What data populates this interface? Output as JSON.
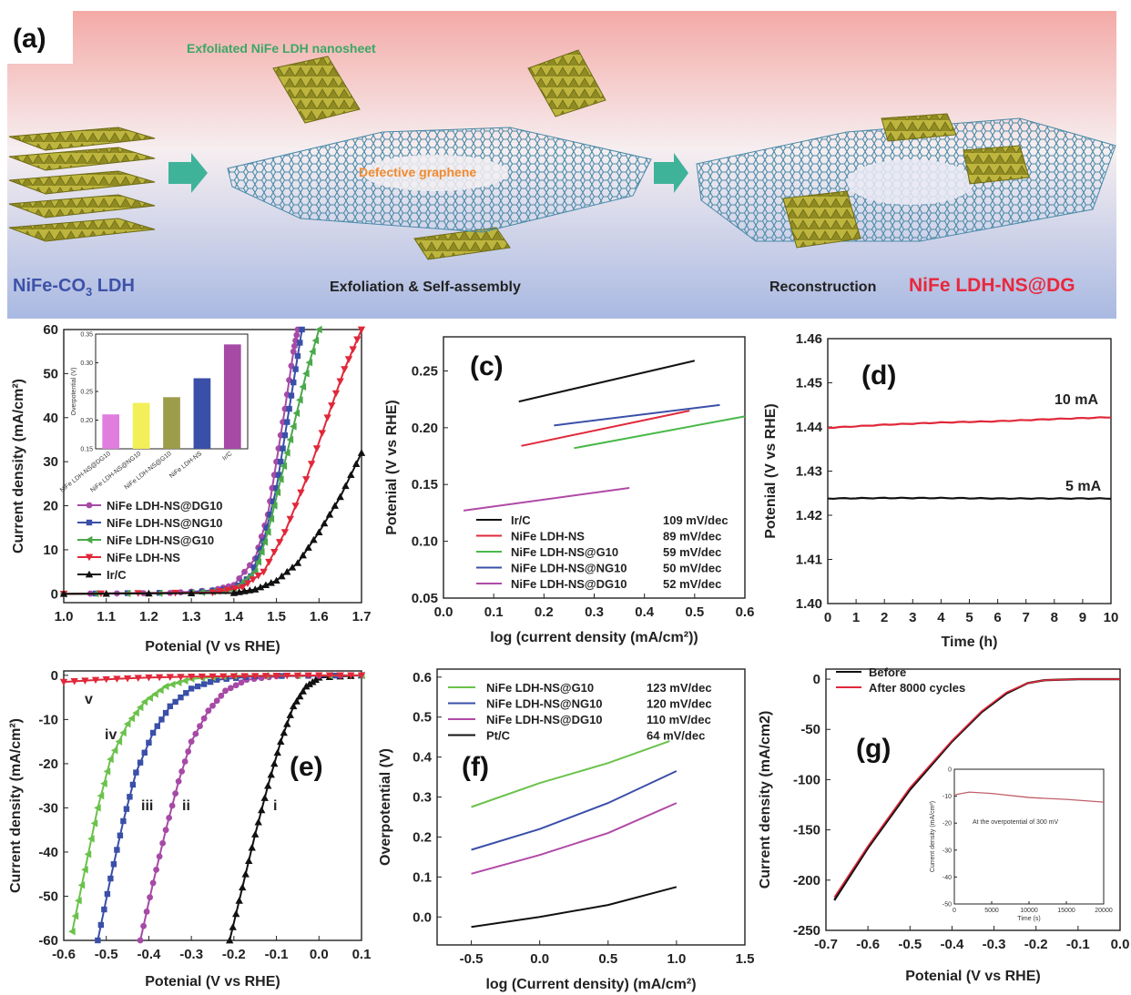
{
  "panel_a": {
    "label": "(a)",
    "title_nanosheet": "Exfoliated NiFe LDH nanosheet",
    "defective_graphene": "Defective graphene",
    "start_material": "NiFe-CO3 LDH",
    "step1": "Exfoliation & Self-assembly",
    "step2": "Reconstruction",
    "product": "NiFe LDH-NS@DG",
    "colors": {
      "bg_top": "#f4a9a6",
      "bg_bottom": "#a9b8e0",
      "arrow": "#3fb39a",
      "blue_text": "#3d52a8",
      "red_text": "#e8283d",
      "green_text": "#3aa866",
      "orange_text": "#f08a2e",
      "ldh": "#b8b23c",
      "graphene": "#4a8aa8"
    }
  },
  "chart_data": [
    {
      "id": "b",
      "type": "line",
      "label": "(b)",
      "xlabel": "Potenial (V vs RHE)",
      "ylabel": "Current density (mA/cm²)",
      "xlim": [
        1.0,
        1.7
      ],
      "ylim": [
        -2,
        60
      ],
      "xticks": [
        "1.0",
        "1.1",
        "1.2",
        "1.3",
        "1.4",
        "1.5",
        "1.6",
        "1.7"
      ],
      "yticks": [
        "0",
        "10",
        "20",
        "30",
        "40",
        "50",
        "60"
      ],
      "legend_position": "lower-left",
      "series": [
        {
          "name": "NiFe LDH-NS@DG10",
          "color": "#a64aa6",
          "marker": "circle",
          "x": [
            1.0,
            1.25,
            1.35,
            1.4,
            1.45,
            1.48,
            1.5,
            1.52,
            1.54,
            1.55
          ],
          "y": [
            0,
            0.2,
            0.8,
            2,
            8,
            18,
            30,
            42,
            55,
            60
          ]
        },
        {
          "name": "NiFe LDH-NS@NG10",
          "color": "#3a4fa8",
          "marker": "square",
          "x": [
            1.0,
            1.3,
            1.4,
            1.44,
            1.47,
            1.5,
            1.52,
            1.54,
            1.56
          ],
          "y": [
            0,
            0.3,
            1.2,
            4,
            12,
            24,
            36,
            48,
            60
          ]
        },
        {
          "name": "NiFe LDH-NS@G10",
          "color": "#4aa84a",
          "marker": "tri-left",
          "x": [
            1.0,
            1.3,
            1.4,
            1.45,
            1.48,
            1.51,
            1.54,
            1.57,
            1.6
          ],
          "y": [
            0,
            0.2,
            0.8,
            5,
            14,
            26,
            38,
            50,
            60
          ]
        },
        {
          "name": "NiFe LDH-NS",
          "color": "#e0283a",
          "marker": "tri-down",
          "x": [
            1.0,
            1.35,
            1.42,
            1.47,
            1.52,
            1.57,
            1.62,
            1.66,
            1.7
          ],
          "y": [
            0,
            0.3,
            1.5,
            5,
            14,
            26,
            40,
            51,
            60
          ]
        },
        {
          "name": "Ir/C",
          "color": "#111111",
          "marker": "tri-up",
          "x": [
            1.0,
            1.4,
            1.45,
            1.5,
            1.55,
            1.6,
            1.65,
            1.7
          ],
          "y": [
            0,
            0.2,
            1,
            3,
            7,
            14,
            22,
            32
          ]
        }
      ],
      "inset": {
        "type": "bar",
        "ylabel": "Overpotential (V)",
        "ylim": [
          0.15,
          0.35
        ],
        "yticks": [
          "0.15",
          "0.20",
          "0.25",
          "0.30",
          "0.35"
        ],
        "categories": [
          "NiFe LDH-NS@DG10",
          "NiFe LDH-NS@NG10",
          "NiFe LDH-NS@G10",
          "NiFe LDH-NS",
          "Ir/C"
        ],
        "values": [
          0.21,
          0.23,
          0.24,
          0.273,
          0.332
        ],
        "colors": [
          "#e27de0",
          "#f2ef58",
          "#9c9c4a",
          "#3a4fa8",
          "#a64aa6"
        ]
      }
    },
    {
      "id": "c",
      "type": "line",
      "label": "(c)",
      "xlabel": "log (current density (mA/cm²))",
      "ylabel": "Potenial (V vs RHE)",
      "xlim": [
        0.0,
        0.6
      ],
      "ylim": [
        0.05,
        0.28
      ],
      "xticks": [
        "0.0",
        "0.1",
        "0.2",
        "0.3",
        "0.4",
        "0.5",
        "0.6"
      ],
      "yticks": [
        "0.05",
        "0.10",
        "0.15",
        "0.20",
        "0.25"
      ],
      "legend_position": "lower-right",
      "series": [
        {
          "name": "Ir/C",
          "slope": "109 mV/dec",
          "color": "#111111",
          "x": [
            0.15,
            0.5
          ],
          "y": [
            0.223,
            0.259
          ]
        },
        {
          "name": "NiFe LDH-NS",
          "slope": "89  mV/dec",
          "color": "#e0283a",
          "x": [
            0.155,
            0.49
          ],
          "y": [
            0.184,
            0.215
          ]
        },
        {
          "name": "NiFe LDH-NS@G10",
          "slope": "59  mV/dec",
          "color": "#4ab84a",
          "x": [
            0.26,
            0.6
          ],
          "y": [
            0.182,
            0.21
          ]
        },
        {
          "name": "NiFe LDH-NS@NG10",
          "slope": "50  mV/dec",
          "color": "#3a4fa8",
          "x": [
            0.22,
            0.55
          ],
          "y": [
            0.202,
            0.22
          ]
        },
        {
          "name": "NiFe LDH-NS@DG10",
          "slope": "52  mV/dec",
          "color": "#b04aa6",
          "x": [
            0.04,
            0.37
          ],
          "y": [
            0.127,
            0.147
          ]
        }
      ]
    },
    {
      "id": "d",
      "type": "line",
      "label": "(d)",
      "xlabel": "Time (h)",
      "ylabel": "Potenial (V vs RHE)",
      "xlim": [
        0,
        10
      ],
      "ylim": [
        1.4,
        1.46
      ],
      "xticks": [
        "0",
        "1",
        "2",
        "3",
        "4",
        "5",
        "6",
        "7",
        "8",
        "9",
        "10"
      ],
      "yticks": [
        "1.40",
        "1.41",
        "1.42",
        "1.43",
        "1.44",
        "1.45",
        "1.46"
      ],
      "series": [
        {
          "name": "10 mA",
          "color": "#e0283a",
          "x": [
            0,
            2,
            4,
            6,
            8,
            10
          ],
          "y": [
            1.4398,
            1.4405,
            1.441,
            1.4413,
            1.4418,
            1.4422
          ]
        },
        {
          "name": "5 mA",
          "color": "#111111",
          "x": [
            0,
            2,
            4,
            6,
            8,
            10
          ],
          "y": [
            1.4238,
            1.4239,
            1.4239,
            1.4238,
            1.4238,
            1.4238
          ]
        }
      ]
    },
    {
      "id": "e",
      "type": "line",
      "label": "(e)",
      "xlabel": "Potenial (V vs RHE)",
      "ylabel": "Current density (mA/cm²)",
      "xlim": [
        -0.6,
        0.1
      ],
      "ylim": [
        -60,
        1
      ],
      "xticks": [
        "-0.6",
        "-0.5",
        "-0.4",
        "-0.3",
        "-0.2",
        "-0.1",
        "0.0",
        "0.1"
      ],
      "yticks": [
        "0",
        "-10",
        "-20",
        "-30",
        "-40",
        "-50",
        "-60"
      ],
      "series": [
        {
          "name": "i",
          "color": "#111111",
          "marker": "tri-up",
          "x": [
            -0.21,
            -0.18,
            -0.15,
            -0.12,
            -0.09,
            -0.06,
            -0.03,
            0.0,
            0.1
          ],
          "y": [
            -60,
            -48,
            -36,
            -25,
            -15,
            -7,
            -2.5,
            -0.5,
            0
          ]
        },
        {
          "name": "ii",
          "color": "#a64aa6",
          "marker": "circle",
          "x": [
            -0.42,
            -0.39,
            -0.36,
            -0.33,
            -0.3,
            -0.26,
            -0.22,
            -0.17,
            -0.1,
            0.1
          ],
          "y": [
            -60,
            -47,
            -35,
            -24,
            -15,
            -8,
            -3.5,
            -1,
            -0.2,
            0
          ]
        },
        {
          "name": "iii",
          "color": "#3a4fa8",
          "marker": "square",
          "x": [
            -0.52,
            -0.49,
            -0.46,
            -0.43,
            -0.39,
            -0.35,
            -0.3,
            -0.24,
            -0.15,
            0.1
          ],
          "y": [
            -60,
            -46,
            -33,
            -22,
            -13,
            -7,
            -3,
            -1,
            -0.2,
            0
          ]
        },
        {
          "name": "iv",
          "color": "#6ac24a",
          "marker": "tri-left",
          "x": [
            -0.58,
            -0.55,
            -0.52,
            -0.49,
            -0.45,
            -0.41,
            -0.36,
            -0.3,
            -0.2,
            0.1
          ],
          "y": [
            -58,
            -44,
            -30,
            -19,
            -11,
            -6,
            -2.5,
            -0.8,
            -0.1,
            0
          ]
        },
        {
          "name": "v",
          "color": "#e0283a",
          "marker": "tri-down",
          "x": [
            -0.6,
            -0.5,
            -0.4,
            -0.3,
            -0.2,
            -0.1,
            0.0,
            0.1
          ],
          "y": [
            -1.5,
            -0.9,
            -0.5,
            -0.3,
            -0.2,
            -0.1,
            0,
            0
          ]
        }
      ]
    },
    {
      "id": "f",
      "type": "line",
      "label": "(f)",
      "xlabel": "log (Current density) (mA/cm²)",
      "ylabel": "Overpotential (V)",
      "xlim": [
        -0.75,
        1.5
      ],
      "ylim": [
        -0.07,
        0.62
      ],
      "xticks": [
        "-0.5",
        "0.0",
        "0.5",
        "1.0",
        "1.5"
      ],
      "yticks": [
        "0.0",
        "0.1",
        "0.2",
        "0.3",
        "0.4",
        "0.5",
        "0.6"
      ],
      "legend_position": "top-left",
      "series": [
        {
          "name": "NiFe LDH-NS@G10",
          "slope": "123 mV/dec",
          "color": "#6ac24a",
          "x": [
            -0.5,
            0,
            0.5,
            0.95
          ],
          "y": [
            0.275,
            0.335,
            0.385,
            0.44
          ]
        },
        {
          "name": "NiFe LDH-NS@NG10",
          "slope": "120 mV/dec",
          "color": "#3a4fa8",
          "x": [
            -0.5,
            0,
            0.5,
            1.0
          ],
          "y": [
            0.168,
            0.22,
            0.285,
            0.365
          ]
        },
        {
          "name": "NiFe LDH-NS@DG10",
          "slope": "110 mV/dec",
          "color": "#b04aa6",
          "x": [
            -0.5,
            0,
            0.5,
            1.0
          ],
          "y": [
            0.108,
            0.155,
            0.21,
            0.285
          ]
        },
        {
          "name": "Pt/C",
          "slope": "64  mV/dec",
          "color": "#111111",
          "x": [
            -0.5,
            0,
            0.5,
            1.0
          ],
          "y": [
            -0.025,
            0.0,
            0.03,
            0.075
          ]
        }
      ]
    },
    {
      "id": "g",
      "type": "line",
      "label": "(g)",
      "xlabel": "Potenial (V vs RHE)",
      "ylabel": "Current density (mA/cm2)",
      "xlim": [
        -0.7,
        0.0
      ],
      "ylim": [
        -250,
        10
      ],
      "xticks": [
        "-0.7",
        "-0.6",
        "-0.5",
        "-0.4",
        "-0.3",
        "-0.2",
        "-0.1",
        "0.0"
      ],
      "yticks": [
        "0",
        "-50",
        "-100",
        "-150",
        "-200",
        "-250"
      ],
      "legend_position": "top-left",
      "series": [
        {
          "name": "Before",
          "color": "#111111",
          "x": [
            -0.68,
            -0.6,
            -0.5,
            -0.4,
            -0.33,
            -0.27,
            -0.22,
            -0.18,
            -0.1,
            0.0
          ],
          "y": [
            -220,
            -168,
            -110,
            -62,
            -33,
            -14,
            -4,
            -1,
            0,
            0
          ]
        },
        {
          "name": "After 8000 cycles",
          "color": "#e0283a",
          "x": [
            -0.68,
            -0.6,
            -0.5,
            -0.4,
            -0.33,
            -0.27,
            -0.22,
            -0.18,
            -0.1,
            0.0
          ],
          "y": [
            -217,
            -166,
            -108,
            -61,
            -32,
            -13,
            -4,
            -1,
            0,
            0
          ]
        }
      ],
      "inset": {
        "xlabel": "Time (s)",
        "ylabel": "Current density (mA/cm²)",
        "annotation": "At the overpotential of 300 mV",
        "xlim": [
          0,
          20000
        ],
        "ylim": [
          -50,
          0
        ],
        "xticks": [
          "0",
          "5000",
          "10000",
          "15000",
          "20000"
        ],
        "yticks": [
          "0",
          "-10",
          "-20",
          "-30",
          "-40",
          "-50"
        ],
        "series": [
          {
            "color": "#c0606a",
            "x": [
              0,
              2000,
              5000,
              10000,
              15000,
              20000
            ],
            "y": [
              -9.5,
              -8.5,
              -9,
              -10.5,
              -11.2,
              -12.2
            ]
          }
        ]
      }
    }
  ]
}
